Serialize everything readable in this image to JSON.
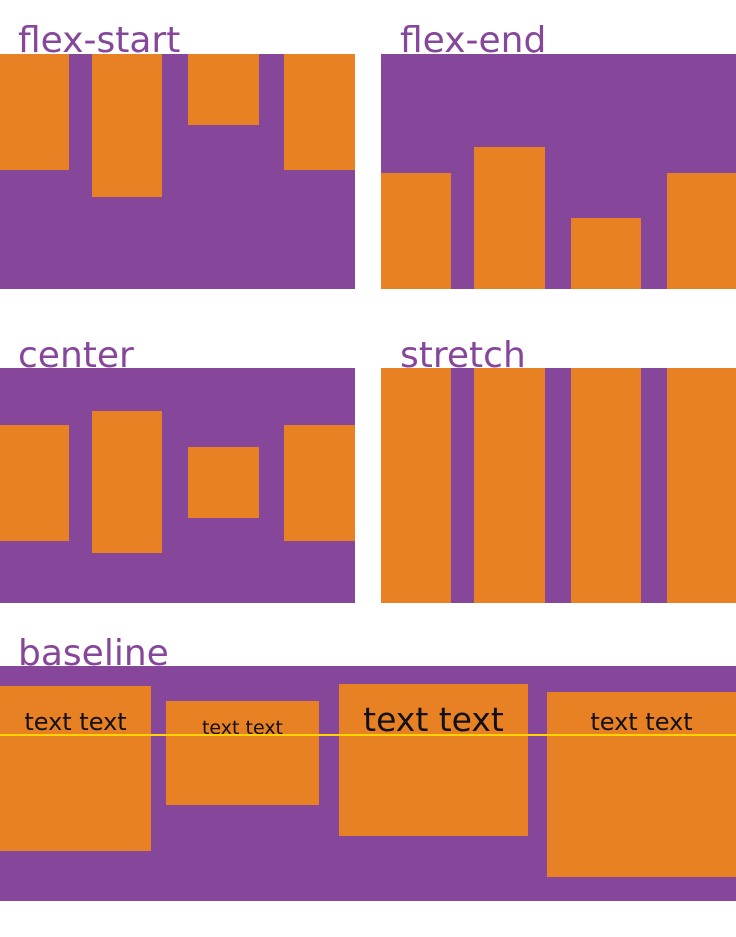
{
  "colors": {
    "container": "#86479a",
    "item": "#e88124",
    "title_text": "#86479a",
    "item_text": "#111111",
    "baseline_line": "#ffd400"
  },
  "labels": {
    "flex_start": "flex-start",
    "flex_end": "flex-end",
    "center": "center",
    "stretch": "stretch",
    "baseline": "baseline"
  },
  "baseline_items": [
    {
      "text": "text text"
    },
    {
      "text": "text text"
    },
    {
      "text": "text text"
    },
    {
      "text": "text text"
    }
  ]
}
